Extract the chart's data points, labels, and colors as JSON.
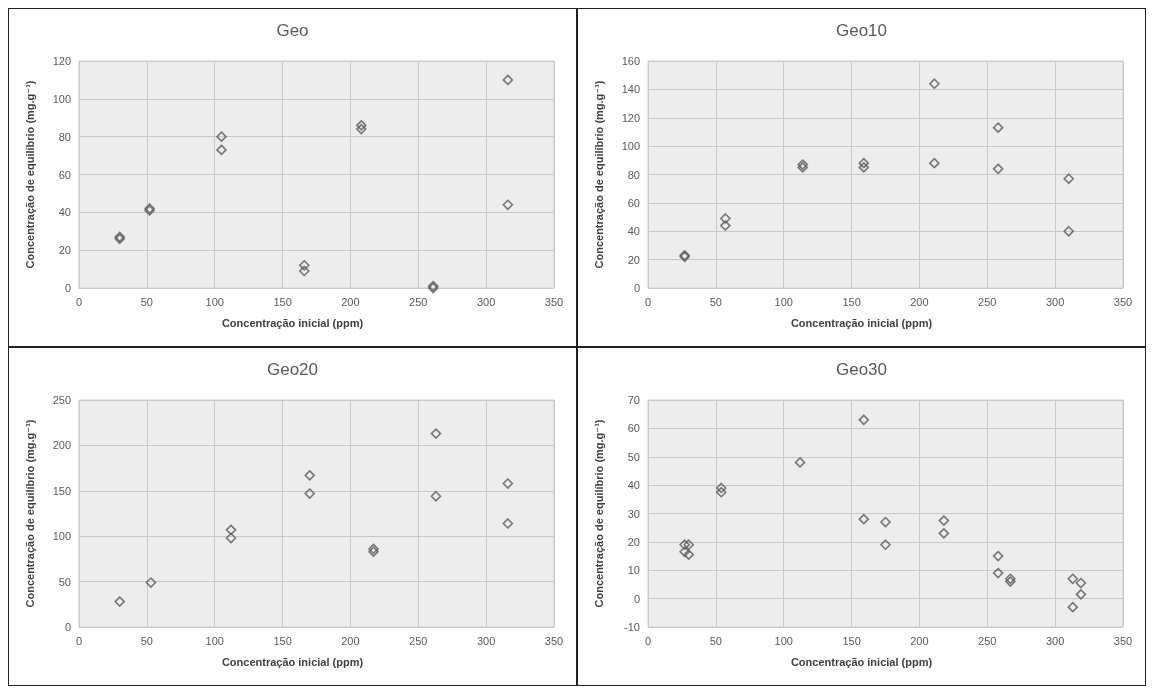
{
  "chart_data": [
    {
      "type": "scatter",
      "title": "Geo",
      "xlabel": "Concentração inicial (ppm)",
      "ylabel": "Concentração de equilíbrio (mg.g⁻¹)",
      "marker": "diamond",
      "grid": true,
      "color": "#595959",
      "xlim": [
        0,
        350
      ],
      "xticks": [
        0,
        50,
        100,
        150,
        200,
        250,
        300,
        350
      ],
      "ylim": [
        0,
        120
      ],
      "yticks": [
        0,
        20,
        40,
        60,
        80,
        100,
        120
      ],
      "x": [
        30,
        30,
        52,
        52,
        105,
        105,
        166,
        166,
        208,
        208,
        261,
        261,
        316,
        316
      ],
      "values": [
        27,
        26,
        42,
        41,
        80,
        73,
        12,
        9,
        86,
        84,
        1,
        0,
        110,
        44
      ]
    },
    {
      "type": "scatter",
      "title": "Geo10",
      "xlabel": "Concentração inicial (ppm)",
      "ylabel": "Concentração de equilíbrio (mg.g⁻¹)",
      "marker": "diamond",
      "grid": true,
      "color": "#595959",
      "xlim": [
        0,
        350
      ],
      "xticks": [
        0,
        50,
        100,
        150,
        200,
        250,
        300,
        350
      ],
      "ylim": [
        0,
        160
      ],
      "yticks": [
        0,
        20,
        40,
        60,
        80,
        100,
        120,
        140,
        160
      ],
      "x": [
        27,
        27,
        57,
        57,
        114,
        114,
        159,
        159,
        211,
        211,
        258,
        258,
        310,
        310
      ],
      "values": [
        23,
        22,
        49,
        44,
        87,
        85,
        88,
        85,
        144,
        88,
        113,
        84,
        77,
        40
      ]
    },
    {
      "type": "scatter",
      "title": "Geo20",
      "xlabel": "Concentração inicial (ppm)",
      "ylabel": "Concentração de equilíbrio (mg.g⁻¹)",
      "marker": "diamond",
      "grid": true,
      "color": "#595959",
      "xlim": [
        0,
        350
      ],
      "xticks": [
        0,
        50,
        100,
        150,
        200,
        250,
        300,
        350
      ],
      "ylim": [
        0,
        250
      ],
      "yticks": [
        0,
        50,
        100,
        150,
        200,
        250
      ],
      "x": [
        30,
        53,
        112,
        112,
        170,
        170,
        217,
        217,
        263,
        263,
        316,
        316
      ],
      "values": [
        28,
        49,
        107,
        98,
        167,
        147,
        86,
        83,
        213,
        144,
        158,
        114
      ]
    },
    {
      "type": "scatter",
      "title": "Geo30",
      "xlabel": "Concentração inicial (ppm)",
      "ylabel": "Concentração de equilíbrio (mg.g⁻¹)",
      "marker": "diamond",
      "grid": true,
      "color": "#595959",
      "xlim": [
        0,
        350
      ],
      "xticks": [
        0,
        50,
        100,
        150,
        200,
        250,
        300,
        350
      ],
      "ylim": [
        -10,
        70
      ],
      "yticks": [
        -10,
        0,
        10,
        20,
        30,
        40,
        50,
        60,
        70
      ],
      "x": [
        27,
        27,
        30,
        30,
        54,
        54,
        112,
        159,
        159,
        175,
        175,
        218,
        218,
        258,
        258,
        267,
        267,
        313,
        313,
        319,
        319
      ],
      "values": [
        19,
        16.5,
        19,
        15.5,
        39,
        37.5,
        48,
        63,
        28,
        27,
        19,
        27.5,
        23,
        15,
        9,
        7,
        6,
        7,
        -3,
        5.5,
        1.5
      ]
    }
  ]
}
